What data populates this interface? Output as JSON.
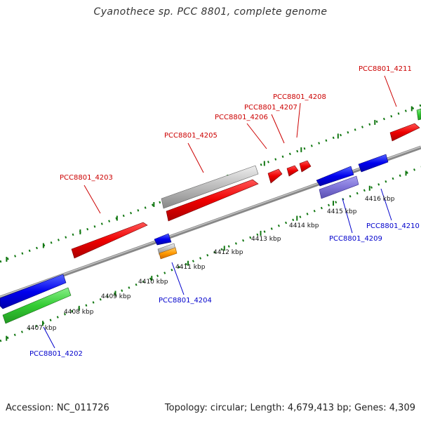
{
  "header": {
    "title": "Cyanothece sp. PCC 8801, complete genome"
  },
  "footer": {
    "accession": "Accession: NC_011726",
    "topology": "Topology: circular; Length: 4,679,413 bp; Genes: 4,309"
  },
  "colors": {
    "forward": "#ff0000",
    "reverse": "#0000ff",
    "forward_other": "#bbbbbb",
    "reverse_other": "#8076d8",
    "rna": "#33cc33",
    "orange": "#ff9900",
    "tick": "#117711",
    "backbone": "#8a8a8a",
    "label_forward": "#cc0000",
    "label_reverse": "#0000cc"
  },
  "scale_labels": [
    "4407 kbp",
    "4408 kbp",
    "4409 kbp",
    "4410 kbp",
    "4411 kbp",
    "4412 kbp",
    "4413 kbp",
    "4414 kbp",
    "4415 kbp",
    "4416 kbp"
  ],
  "gene_labels": {
    "forward": [
      "PCC8801_4203",
      "PCC8801_4205",
      "PCC8801_4206",
      "PCC8801_4207",
      "PCC8801_4208",
      "PCC8801_4211"
    ],
    "reverse": [
      "PCC8801_4202",
      "PCC8801_4204",
      "PCC8801_4209",
      "PCC8801_4210"
    ]
  }
}
